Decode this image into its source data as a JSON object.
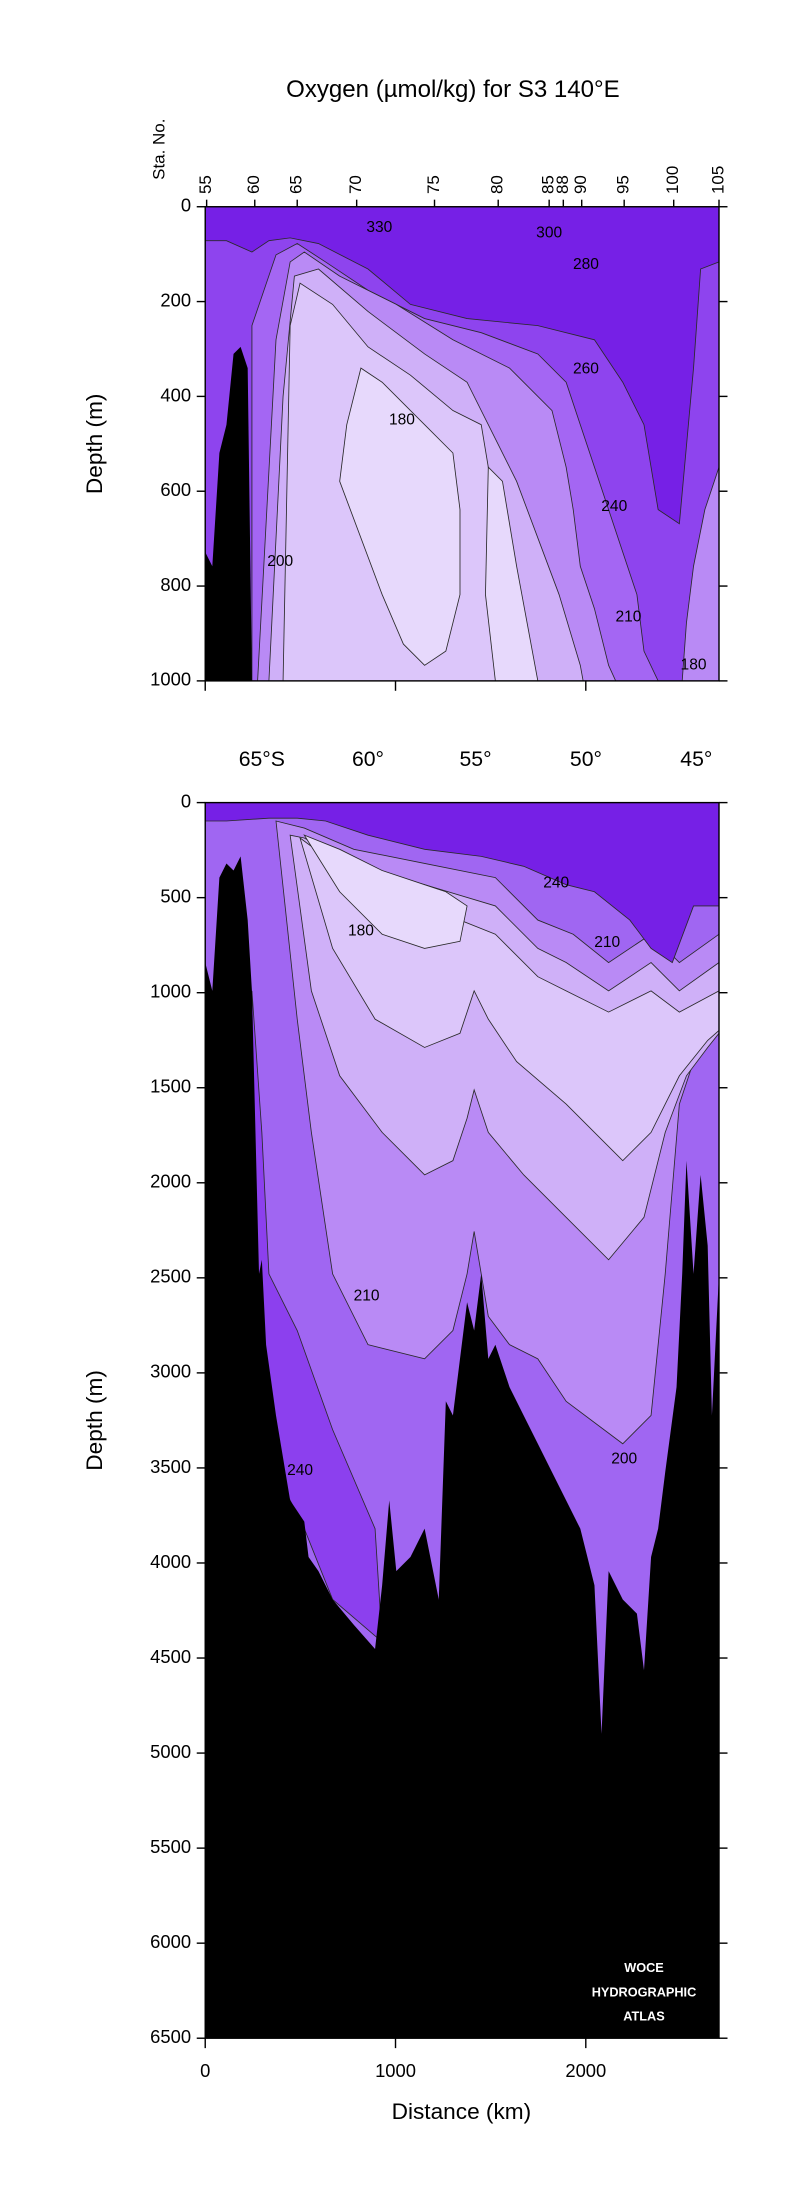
{
  "title": "Oxygen (µmol/kg) for S3 140°E",
  "watermark": [
    "WOCE",
    "HYDROGRAPHIC",
    "ATLAS"
  ],
  "chart_data": [
    {
      "type": "contour",
      "y_label": "Depth (m)",
      "ylim": [
        0,
        1000
      ],
      "yticks": [
        0,
        200,
        400,
        600,
        800,
        1000
      ],
      "xlim": [
        0,
        2700
      ],
      "xticks": [
        0,
        1000,
        2000
      ],
      "station_label": "Sta. No.",
      "stations": [
        55,
        60,
        65,
        70,
        75,
        80,
        85,
        88,
        90,
        95,
        100,
        105
      ],
      "contour_labels": [
        330,
        300,
        280,
        260,
        180,
        240,
        200,
        210,
        180
      ]
    },
    {
      "type": "contour",
      "y_label": "Depth (m)",
      "x_label": "Distance (km)",
      "ylim": [
        0,
        6500
      ],
      "yticks": [
        0,
        500,
        1000,
        1500,
        2000,
        2500,
        3000,
        3500,
        4000,
        4500,
        5000,
        5500,
        6000,
        6500
      ],
      "xlim": [
        0,
        2700
      ],
      "xticks": [
        0,
        1000,
        2000
      ],
      "lat_labels": [
        "65°S",
        "60°",
        "55°",
        "50°",
        "45°"
      ],
      "contour_labels": [
        240,
        180,
        210,
        210,
        200,
        240
      ]
    }
  ]
}
